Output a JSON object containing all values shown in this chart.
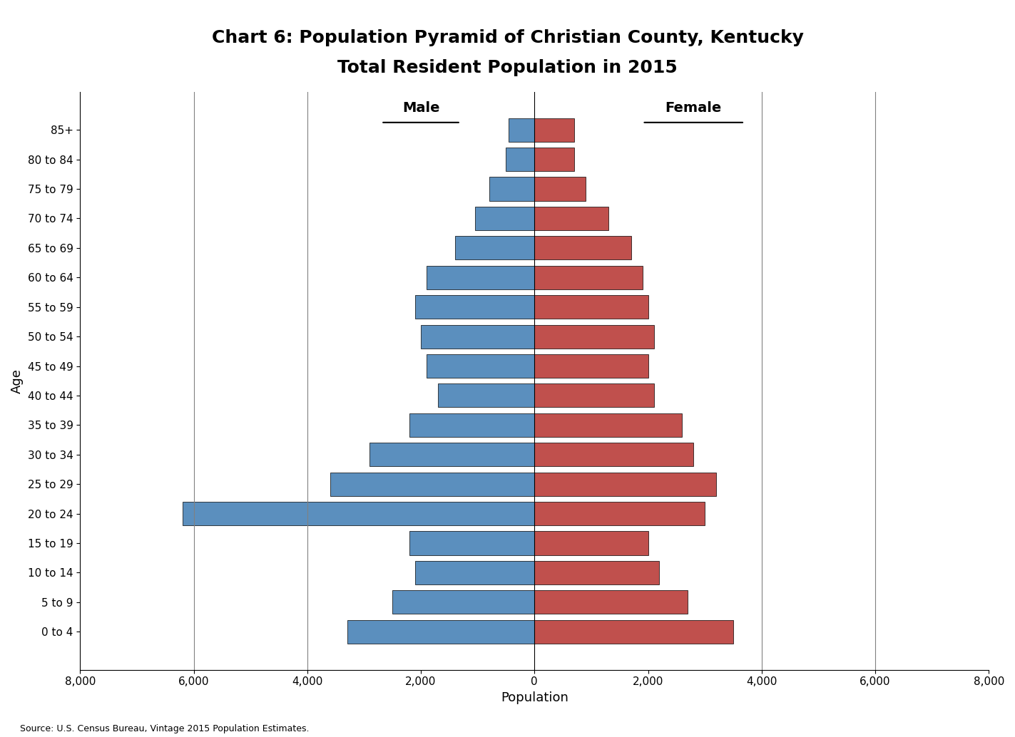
{
  "title_line1": "Chart 6: Population Pyramid of Christian County, Kentucky",
  "title_line2": "Total Resident Population in 2015",
  "age_groups": [
    "0 to 4",
    "5 to 9",
    "10 to 14",
    "15 to 19",
    "20 to 24",
    "25 to 29",
    "30 to 34",
    "35 to 39",
    "40 to 44",
    "45 to 49",
    "50 to 54",
    "55 to 59",
    "60 to 64",
    "65 to 69",
    "70 to 74",
    "75 to 79",
    "80 to 84",
    "85+"
  ],
  "male": [
    3300,
    2500,
    2100,
    2200,
    6200,
    3600,
    2900,
    2200,
    1700,
    1900,
    2000,
    2100,
    1900,
    1400,
    1050,
    800,
    500,
    450
  ],
  "female": [
    3500,
    2700,
    2200,
    2000,
    3000,
    3200,
    2800,
    2600,
    2100,
    2000,
    2100,
    2000,
    1900,
    1700,
    1300,
    900,
    700,
    700
  ],
  "male_color": "#5b8fbe",
  "female_color": "#c0504d",
  "xlabel": "Population",
  "ylabel": "Age",
  "xlim": [
    -8000,
    8000
  ],
  "xticks": [
    -8000,
    -6000,
    -4000,
    -2000,
    0,
    2000,
    4000,
    6000,
    8000
  ],
  "xtick_labels": [
    "8,000",
    "6,000",
    "4,000",
    "2,000",
    "0",
    "2,000",
    "4,000",
    "6,000",
    "8,000"
  ],
  "source_text": "Source: U.S. Census Bureau, Vintage 2015 Population Estimates.",
  "male_label": "Male",
  "female_label": "Female",
  "background_color": "#ffffff",
  "bar_edgecolor": "#000000",
  "bar_linewidth": 0.5,
  "title_fontsize": 18,
  "axis_label_fontsize": 13,
  "tick_fontsize": 11,
  "legend_fontsize": 14,
  "vline_positions": [
    -6000,
    -4000,
    4000,
    6000
  ],
  "figsize": [
    14.23,
    10.34
  ],
  "dpi": 100
}
